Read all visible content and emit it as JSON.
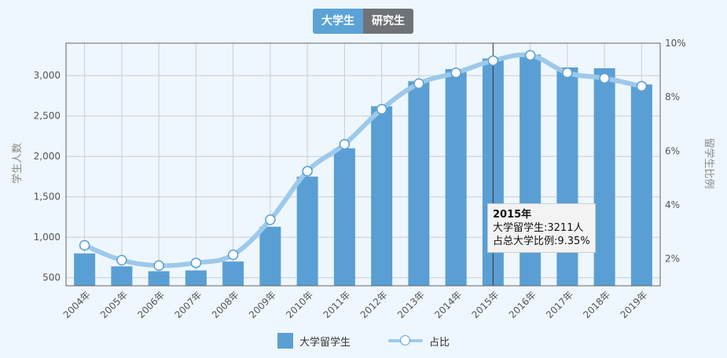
{
  "tabs": [
    {
      "label": "大学生",
      "active": true
    },
    {
      "label": "研究生",
      "active": false
    }
  ],
  "colors": {
    "bar": "#5a9fd4",
    "line": "#9dc9ea",
    "marker_border": "#5a9fd4",
    "grid": "#c9cdd1"
  },
  "tooltip": {
    "title": "2015年",
    "line1": "大学留学生:3211人",
    "line2": "占总大学比例:9.35%"
  },
  "legend": {
    "bar_label": "大学留学生",
    "line_label": "占比"
  },
  "chart_data": {
    "type": "bar",
    "categories": [
      "2004年",
      "2005年",
      "2006年",
      "2007年",
      "2008年",
      "2009年",
      "2010年",
      "2011年",
      "2012年",
      "2013年",
      "2014年",
      "2015年",
      "2016年",
      "2017年",
      "2018年",
      "2019年"
    ],
    "series": [
      {
        "name": "大学留学生",
        "type": "bar",
        "axis": "left",
        "values": [
          800,
          640,
          580,
          590,
          700,
          1130,
          1750,
          2100,
          2620,
          2930,
          3080,
          3211,
          3260,
          3100,
          3090,
          2890
        ]
      },
      {
        "name": "占比",
        "type": "line",
        "axis": "right",
        "values": [
          2.5,
          1.95,
          1.75,
          1.85,
          2.15,
          3.45,
          5.25,
          6.25,
          7.55,
          8.5,
          8.9,
          9.35,
          9.55,
          8.9,
          8.7,
          8.4
        ]
      }
    ],
    "ylabel": "学生人数",
    "y2label": "留学生比例",
    "ylim": [
      400,
      3400
    ],
    "y_ticks": [
      500,
      1000,
      1500,
      2000,
      2500,
      3000
    ],
    "y_tick_labels": [
      "500",
      "1,000",
      "1,500",
      "2,000",
      "2,500",
      "3,000"
    ],
    "y2lim": [
      1.0,
      10.0
    ],
    "y2_ticks": [
      2,
      4,
      6,
      8,
      10
    ],
    "y2_tick_labels": [
      "2%",
      "4%",
      "6%",
      "8%",
      "10%"
    ],
    "highlight_category": "2015年",
    "grid": true,
    "legend_position": "bottom"
  }
}
